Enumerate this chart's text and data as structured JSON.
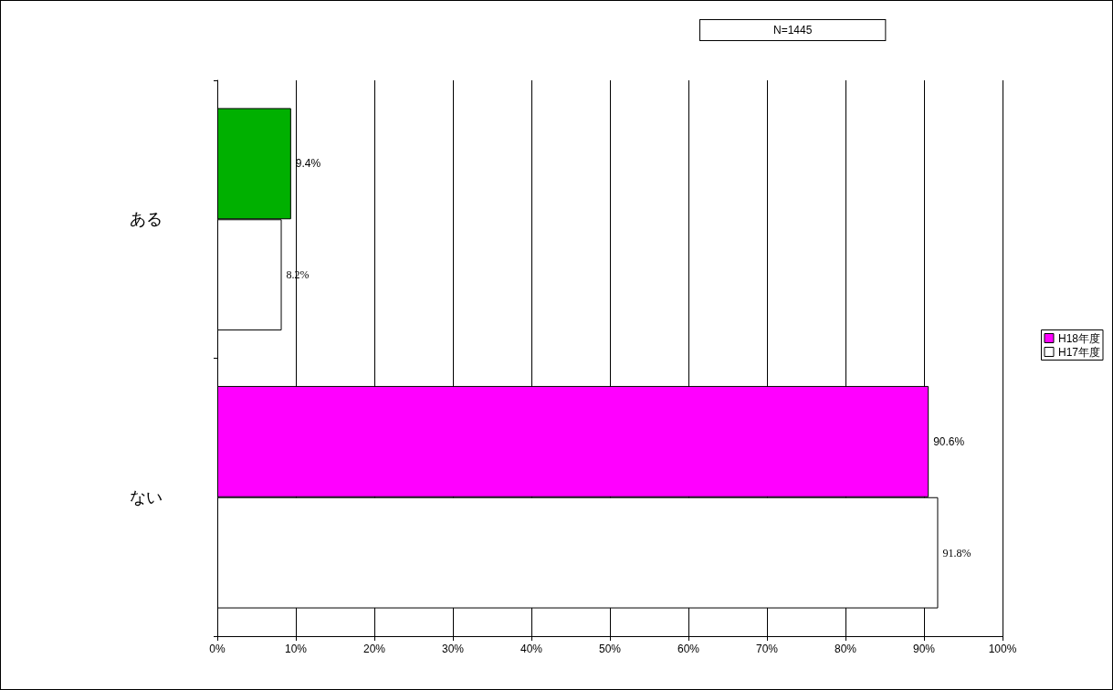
{
  "chart_data": {
    "type": "bar",
    "orientation": "horizontal",
    "categories": [
      "ある",
      "ない"
    ],
    "series": [
      {
        "name": "H18年度",
        "color": "#ff00ff",
        "colors": [
          "#00b000",
          "#ff00ff"
        ],
        "values": [
          9.4,
          90.6
        ],
        "value_labels": [
          "9.4%",
          "90.6%"
        ]
      },
      {
        "name": "H17年度",
        "color": "#ffffff",
        "values": [
          8.2,
          91.8
        ],
        "value_labels": [
          "8.2%",
          "91.8%"
        ]
      }
    ],
    "xlim": [
      0,
      100
    ],
    "xticks": [
      {
        "value": 0,
        "label": "0%"
      },
      {
        "value": 10,
        "label": "10%"
      },
      {
        "value": 20,
        "label": "20%"
      },
      {
        "value": 30,
        "label": "30%"
      },
      {
        "value": 40,
        "label": "40%"
      },
      {
        "value": 50,
        "label": "50%"
      },
      {
        "value": 60,
        "label": "60%"
      },
      {
        "value": 70,
        "label": "70%"
      },
      {
        "value": 80,
        "label": "80%"
      },
      {
        "value": 90,
        "label": "90%"
      },
      {
        "value": 100,
        "label": "100%"
      }
    ],
    "grid": "x",
    "legend": "right",
    "annotations": [
      "N=1445"
    ]
  }
}
